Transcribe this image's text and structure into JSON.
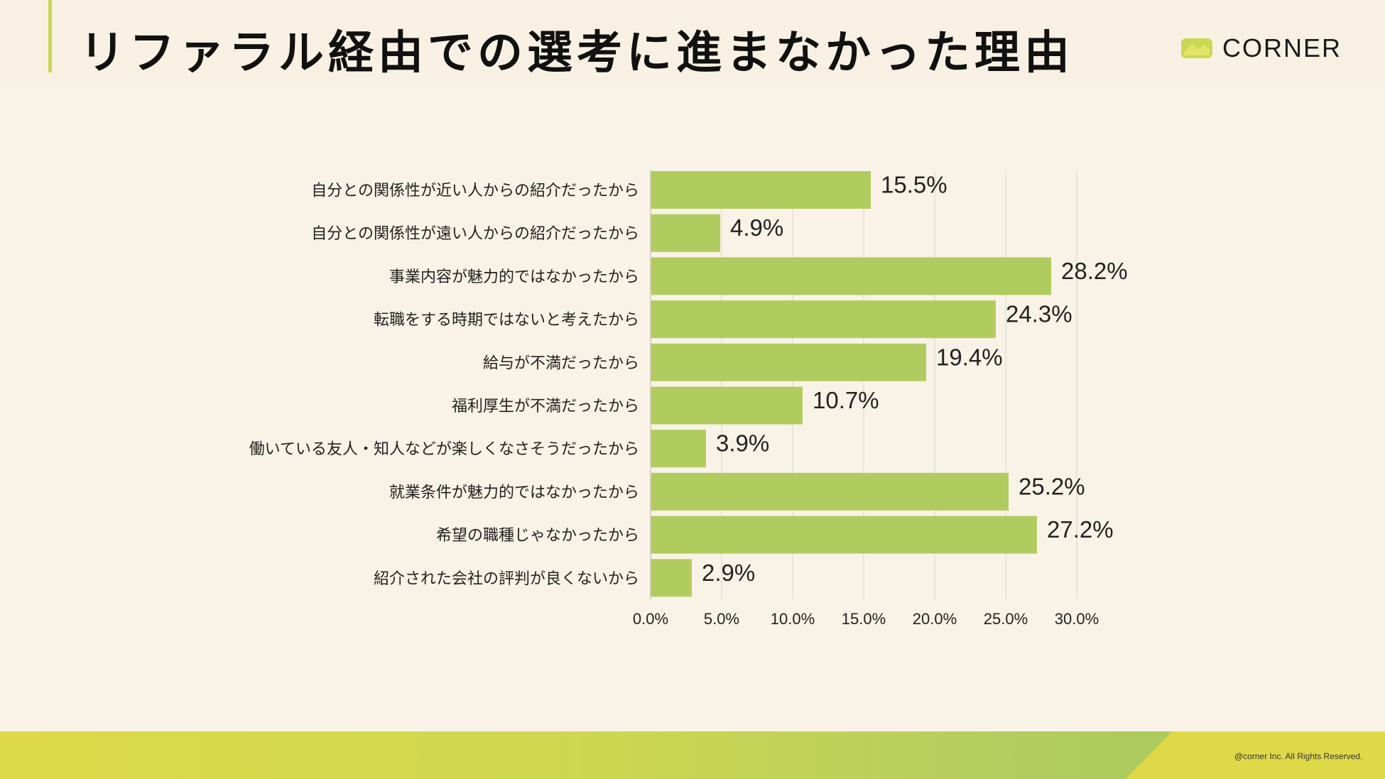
{
  "title": "リファラル経由での選考に進まなかった理由",
  "logo": {
    "text": "CORNER"
  },
  "copyright": "@corner Inc. All Rights Reserved.",
  "colors": {
    "bar": "#b0cc5f",
    "grid": "#dedbd1",
    "background": "#f9f2e6",
    "accent": "#c9d954"
  },
  "chart_data": {
    "type": "bar",
    "orientation": "horizontal",
    "categories": [
      "自分との関係性が近い人からの紹介だったから",
      "自分との関係性が遠い人からの紹介だったから",
      "事業内容が魅力的ではなかったから",
      "転職をする時期ではないと考えたから",
      "給与が不満だったから",
      "福利厚生が不満だったから",
      "働いている友人・知人などが楽しくなさそうだったから",
      "就業条件が魅力的ではなかったから",
      "希望の職種じゃなかったから",
      "紹介された会社の評判が良くないから"
    ],
    "values": [
      15.5,
      4.9,
      28.2,
      24.3,
      19.4,
      10.7,
      3.9,
      25.2,
      27.2,
      2.9
    ],
    "value_labels": [
      "15.5%",
      "4.9%",
      "28.2%",
      "24.3%",
      "19.4%",
      "10.7%",
      "3.9%",
      "25.2%",
      "27.2%",
      "2.9%"
    ],
    "xticks": [
      "0.0%",
      "5.0%",
      "10.0%",
      "15.0%",
      "20.0%",
      "25.0%",
      "30.0%"
    ],
    "xlim": [
      0,
      30
    ],
    "grid": true
  }
}
